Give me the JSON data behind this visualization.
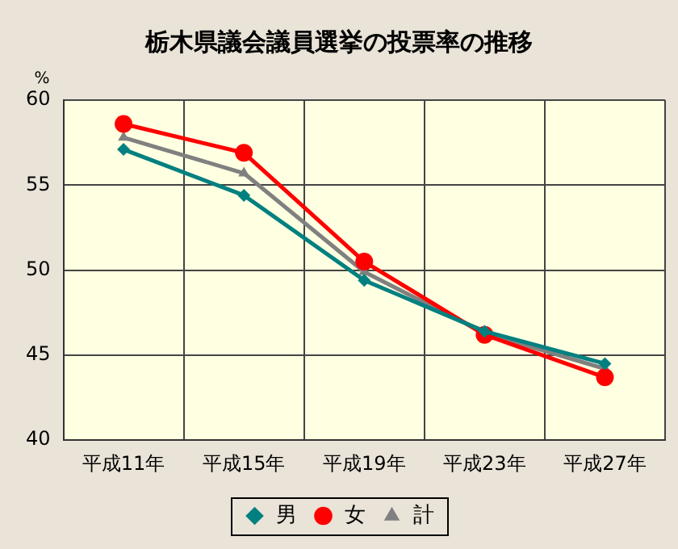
{
  "chart_data": {
    "type": "line",
    "title": "栃木県議会議員選挙の投票率の推移",
    "ylabel": "%",
    "categories": [
      "平成11年",
      "平成15年",
      "平成19年",
      "平成23年",
      "平成27年"
    ],
    "series": [
      {
        "name": "男",
        "color": "#008080",
        "marker": "diamond",
        "values": [
          57.1,
          54.4,
          49.4,
          46.4,
          44.5
        ]
      },
      {
        "name": "女",
        "color": "#ff0000",
        "marker": "circle",
        "values": [
          58.6,
          56.9,
          50.5,
          46.2,
          43.7
        ]
      },
      {
        "name": "計",
        "color": "#808080",
        "marker": "triangle",
        "values": [
          57.8,
          55.7,
          49.9,
          46.3,
          44.2
        ]
      }
    ],
    "ylim": [
      40,
      60
    ],
    "yticks": [
      40,
      45,
      50,
      55,
      60
    ],
    "grid": true,
    "legend": "bottom",
    "line_style": "solid"
  }
}
